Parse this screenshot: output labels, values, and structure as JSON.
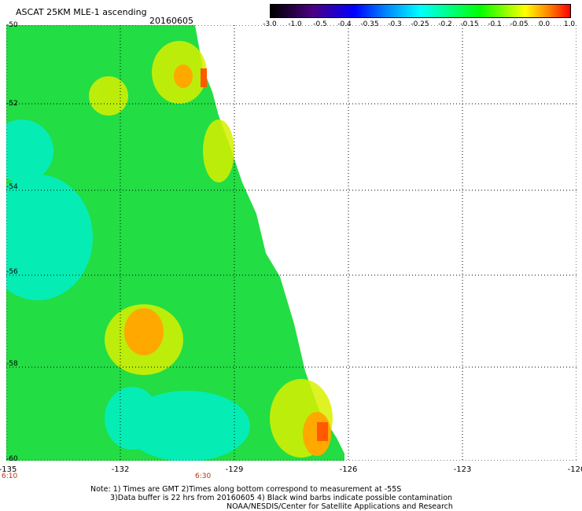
{
  "header": {
    "title": "ASCAT 25KM MLE-1 ascending",
    "date": "20160605"
  },
  "colorbar": {
    "labels": [
      "-3.0",
      "-1.0",
      "-0.5",
      "-0.4",
      "-0.35",
      "-0.3",
      "-0.25",
      "-0.2",
      "-0.15",
      "-0.1",
      "-0.05",
      "0.0",
      "1.0"
    ]
  },
  "map": {
    "lon_labels": [
      "-135",
      "-132",
      "-129",
      "-126",
      "-123",
      "-120"
    ],
    "lat_labels": [
      "-50",
      "-52",
      "-54",
      "-56",
      "-58",
      "-60"
    ],
    "time_labels": [
      "6:10",
      "6:30"
    ]
  },
  "notes": {
    "line1": "Note: 1) Times are GMT 2)Times along bottom correspond to measurement at -55S",
    "line2": "3)Data buffer is 22 hrs from 20160605 4) Black wind barbs indicate possible contamination",
    "line3": "NOAA/NESDIS/Center for Satellite Applications and Research"
  }
}
